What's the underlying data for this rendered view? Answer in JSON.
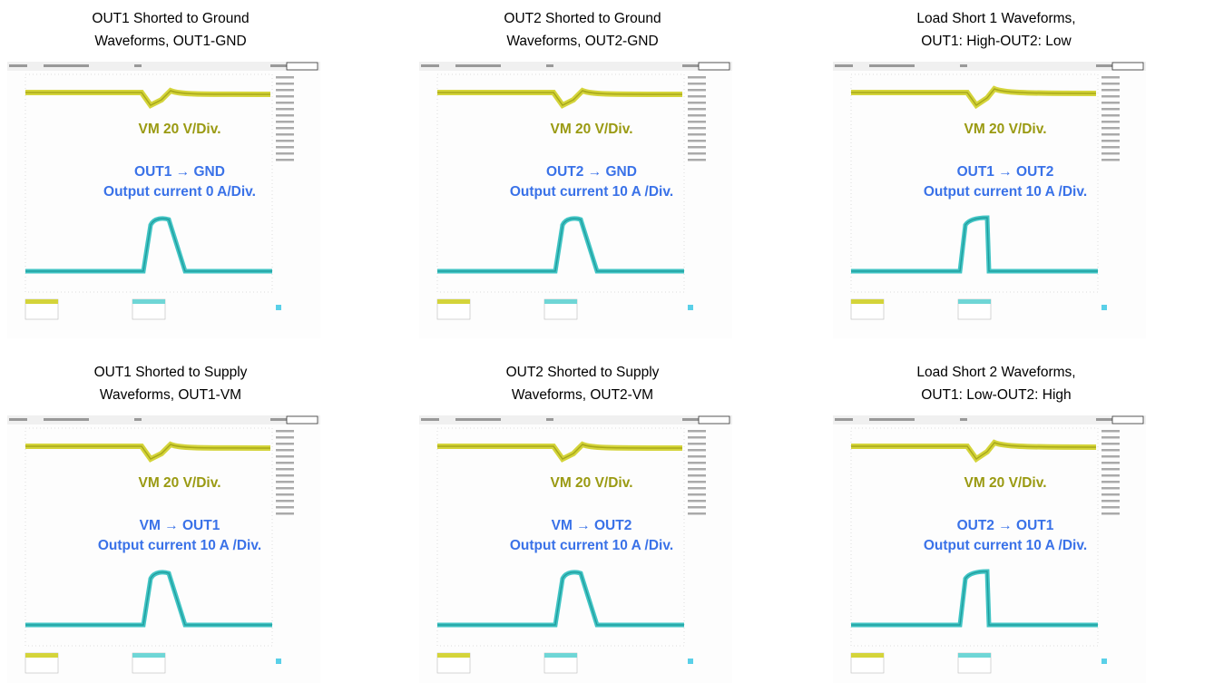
{
  "panels": [
    {
      "title": [
        "OUT1 Shorted to Ground",
        "Waveforms, OUT1-GND"
      ],
      "voltage_label": "VM 20 V/Div.",
      "current_label": [
        "OUT1 → GND",
        "Output current 0 A/Div."
      ]
    },
    {
      "title": [
        "OUT2 Shorted to Ground",
        "Waveforms, OUT2-GND"
      ],
      "voltage_label": "VM 20 V/Div.",
      "current_label": [
        "OUT2 → GND",
        "Output current 10 A /Div."
      ]
    },
    {
      "title": [
        "Load Short 1 Waveforms,",
        "OUT1: High-OUT2: Low"
      ],
      "voltage_label": "VM 20 V/Div.",
      "current_label": [
        "OUT1 → OUT2",
        "Output current 10 A /Div."
      ]
    },
    {
      "title": [
        "OUT1 Shorted to Supply",
        "Waveforms, OUT1-VM"
      ],
      "voltage_label": "VM 20 V/Div.",
      "current_label": [
        "VM → OUT1",
        "Output current 10 A /Div."
      ]
    },
    {
      "title": [
        "OUT2 Shorted to Supply",
        "Waveforms, OUT2-VM"
      ],
      "voltage_label": "VM 20 V/Div.",
      "current_label": [
        "VM → OUT2",
        "Output current 10 A /Div."
      ]
    },
    {
      "title": [
        "Load Short 2 Waveforms,",
        "OUT1: Low-OUT2: High"
      ],
      "voltage_label": "VM 20 V/Div.",
      "current_label": [
        "OUT2 → OUT1",
        "Output current 10 A /Div."
      ]
    }
  ]
}
